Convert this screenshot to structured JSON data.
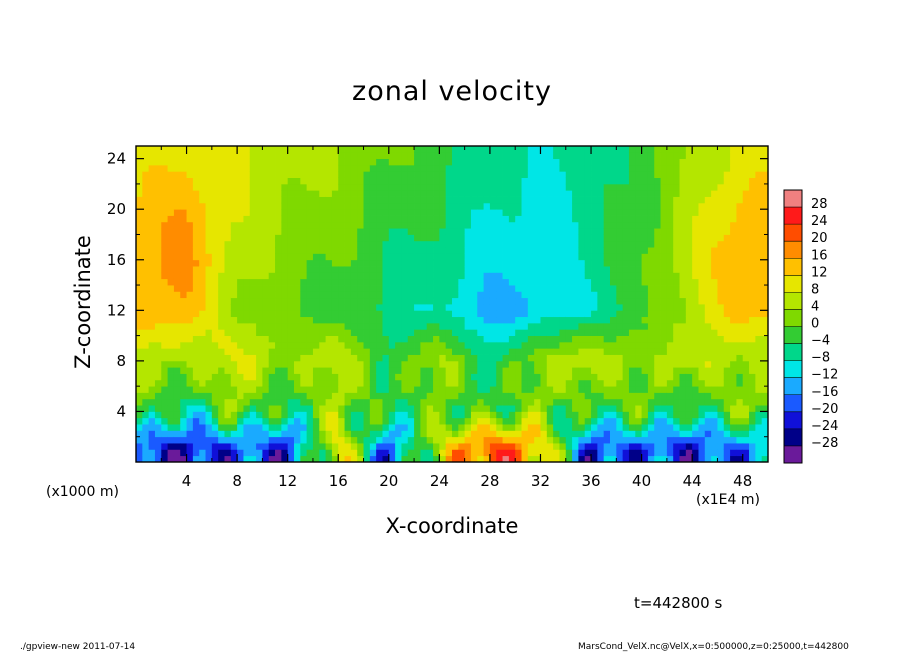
{
  "chart_data": {
    "type": "heatmap",
    "title": "zonal velocity",
    "xlabel": "X-coordinate",
    "ylabel": "Z-coordinate",
    "x_unit_label": "(x1E4 m)",
    "y_unit_label": "(x1000 m)",
    "xlim": [
      0,
      50
    ],
    "ylim": [
      0,
      25
    ],
    "x_ticks": [
      4,
      8,
      12,
      16,
      20,
      24,
      28,
      32,
      36,
      40,
      44,
      48
    ],
    "y_ticks": [
      4,
      8,
      12,
      16,
      20,
      24
    ],
    "x_tick_labels": [
      "4",
      "8",
      "12",
      "16",
      "20",
      "24",
      "28",
      "32",
      "36",
      "40",
      "44",
      "48"
    ],
    "y_tick_labels": [
      "4",
      "8",
      "12",
      "16",
      "20",
      "24"
    ],
    "colorbar": {
      "levels": [
        28,
        24,
        20,
        16,
        12,
        8,
        4,
        0,
        -4,
        -8,
        -12,
        -16,
        -20,
        -24,
        -28
      ],
      "labels": [
        "28",
        "24",
        "20",
        "16",
        "12",
        "8",
        "4",
        "0",
        "−4",
        "−8",
        "−12",
        "−16",
        "−20",
        "−24",
        "−28"
      ],
      "colors": [
        "#f08080",
        "#ff1a1a",
        "#ff4d00",
        "#ff8c00",
        "#ffc000",
        "#e6e600",
        "#b4e600",
        "#7fd900",
        "#33cc33",
        "#00d78a",
        "#00e6e6",
        "#1aaaff",
        "#1a5aff",
        "#1010d8",
        "#000088",
        "#6a1a9a"
      ]
    },
    "field_samples": {
      "description_rows": "z (x1000 m)",
      "z": [
        24,
        20,
        16,
        12,
        8,
        4,
        1
      ],
      "x": [
        0,
        4,
        8,
        12,
        16,
        20,
        24,
        28,
        32,
        36,
        40,
        44,
        48
      ],
      "values": [
        [
          10,
          12,
          8,
          6,
          4,
          0,
          -2,
          -6,
          -8,
          -6,
          -2,
          4,
          10
        ],
        [
          12,
          16,
          8,
          4,
          2,
          -2,
          -4,
          -8,
          -10,
          -6,
          -2,
          6,
          14
        ],
        [
          14,
          18,
          6,
          2,
          0,
          -4,
          -6,
          -10,
          -10,
          -6,
          0,
          8,
          16
        ],
        [
          16,
          14,
          4,
          0,
          -2,
          -6,
          -8,
          -14,
          -12,
          -8,
          -2,
          6,
          14
        ],
        [
          6,
          4,
          10,
          2,
          8,
          -4,
          6,
          -6,
          4,
          8,
          2,
          8,
          4
        ],
        [
          2,
          -8,
          2,
          -6,
          4,
          -4,
          0,
          -2,
          2,
          -4,
          0,
          -6,
          2
        ],
        [
          -20,
          -24,
          -18,
          -22,
          12,
          -20,
          8,
          24,
          14,
          -22,
          -18,
          -22,
          -16
        ]
      ]
    }
  },
  "annotations": {
    "time_label": "t=442800 s",
    "footer_left": "./gpview-new   2011-07-14",
    "footer_right": "MarsCond_VelX.nc@VelX,x=0:500000,z=0:25000,t=442800"
  }
}
